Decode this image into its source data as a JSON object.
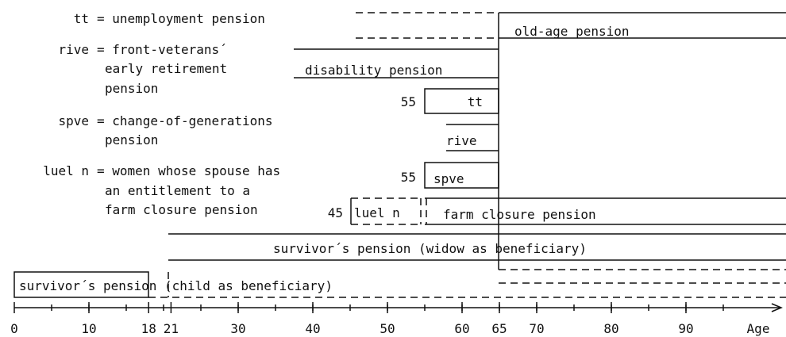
{
  "legend": [
    {
      "term": "tt",
      "lines": [
        "= unemployment pension"
      ]
    },
    {
      "term": "rive",
      "lines": [
        "= front-veterans´",
        "early retirement",
        "pension"
      ]
    },
    {
      "term": "spve",
      "lines": [
        "= change-of-generations",
        "pension"
      ]
    },
    {
      "term": "luel n",
      "lines": [
        "= women whose spouse has",
        "an entitlement to a",
        "farm closure pension"
      ]
    }
  ],
  "bars": {
    "old_age": "old-age pension",
    "disability": "disability pension",
    "tt": "tt",
    "tt_age": "55",
    "rive": "rive",
    "spve": "spve",
    "spve_age": "55",
    "luel": "luel n",
    "luel_age": "45",
    "farm": "farm closure pension",
    "widow": "survivor´s pension (widow as beneficiary)",
    "child": "survivor´s pension (child as beneficiary)"
  },
  "axis": {
    "ticks": [
      0,
      10,
      18,
      21,
      30,
      40,
      50,
      60,
      65,
      70,
      80,
      90
    ],
    "end_label": "Age"
  }
}
